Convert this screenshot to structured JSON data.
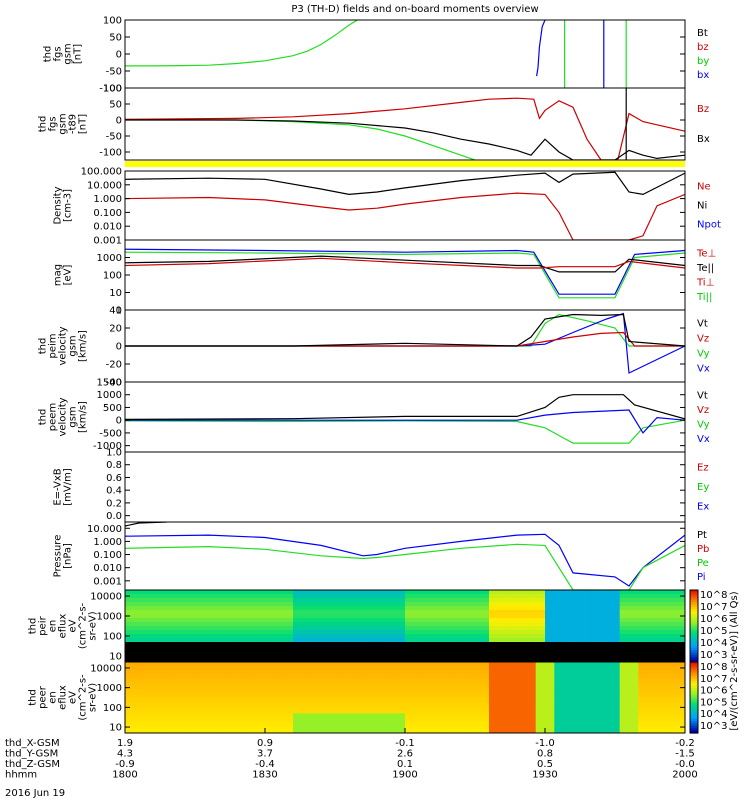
{
  "title": "P3 (TH-D) fields and on-board moments overview",
  "date_label": "2016 Jun 19",
  "colors": {
    "black": "#000000",
    "red": "#cc0000",
    "green": "#00cc00",
    "blue": "#0000ff",
    "brightgreen": "#22dd22",
    "yellow": "#ffff00"
  },
  "chart_data": [
    {
      "type": "line",
      "name": "fgs_gsm",
      "ylabel": [
        "thd",
        "fgs",
        "gsm",
        "[nT]"
      ],
      "ylim": [
        -100,
        100
      ],
      "yticks": [
        "100",
        "50",
        "0",
        "-50",
        "-100"
      ],
      "legend": [
        {
          "label": "Bt",
          "color": "#000000"
        },
        {
          "label": "bz",
          "color": "#cc0000"
        },
        {
          "label": "by",
          "color": "#00cc00"
        },
        {
          "label": "bx",
          "color": "#0000ff"
        }
      ],
      "series": [
        {
          "color": "#22dd22",
          "x": [
            18.0,
            18.1,
            18.2,
            18.3,
            18.4,
            18.5,
            18.6,
            18.65,
            18.7,
            18.75,
            18.8,
            18.83
          ],
          "y": [
            -35,
            -35,
            -34,
            -33,
            -28,
            -20,
            -5,
            8,
            28,
            55,
            85,
            100
          ]
        },
        {
          "color": "#0000ff",
          "x": [
            19.47,
            19.475,
            19.48,
            19.49,
            19.5
          ],
          "y": [
            -65,
            -40,
            20,
            80,
            100
          ]
        },
        {
          "color": "#0000ff",
          "x": [
            19.71,
            19.71
          ],
          "y": [
            100,
            -100
          ]
        },
        {
          "color": "#22dd22",
          "x": [
            19.57,
            19.57
          ],
          "y": [
            100,
            -100
          ]
        },
        {
          "color": "#22dd22",
          "x": [
            19.79,
            19.79
          ],
          "y": [
            100,
            -100
          ]
        }
      ]
    },
    {
      "type": "line",
      "name": "fgs_gsm_t89",
      "ylabel": [
        "thd",
        "fgs",
        "gsm",
        "-t89",
        "[nT]"
      ],
      "ylim": [
        -125,
        100
      ],
      "yticks": [
        "100",
        "50",
        "0",
        "-50",
        "-100"
      ],
      "legend": [
        {
          "label": "Bz",
          "color": "#cc0000"
        },
        {
          "label": "Bx",
          "color": "#000000"
        }
      ],
      "series": [
        {
          "color": "#22dd22",
          "x": [
            18.0,
            18.4,
            18.6,
            18.8,
            18.9,
            19.0,
            19.1,
            19.2,
            19.25
          ],
          "y": [
            2,
            0,
            -5,
            -15,
            -28,
            -50,
            -80,
            -110,
            -125
          ]
        },
        {
          "color": "#cc0000",
          "x": [
            18.0,
            18.4,
            18.6,
            18.8,
            19.0,
            19.2,
            19.3,
            19.4,
            19.46,
            19.48,
            19.5,
            19.55,
            19.6,
            19.65,
            19.7,
            19.76,
            19.8,
            19.85,
            19.9,
            20.0
          ],
          "y": [
            2,
            5,
            10,
            20,
            35,
            55,
            65,
            68,
            65,
            5,
            30,
            60,
            40,
            -60,
            -125,
            -125,
            20,
            -5,
            -15,
            -35
          ]
        },
        {
          "color": "#000000",
          "x": [
            18.0,
            18.4,
            18.6,
            18.8,
            19.0,
            19.1,
            19.2,
            19.3,
            19.4,
            19.45,
            19.5,
            19.55,
            19.6,
            19.75,
            19.8,
            19.85,
            19.9,
            20.0
          ],
          "y": [
            0,
            0,
            -3,
            -10,
            -25,
            -40,
            -60,
            -75,
            -95,
            -110,
            -60,
            -100,
            -125,
            -125,
            -95,
            -110,
            -120,
            -110
          ]
        },
        {
          "color": "#000000",
          "x": [
            19.79,
            19.79
          ],
          "y": [
            100,
            -125
          ]
        }
      ]
    },
    {
      "type": "line",
      "name": "density",
      "ylabel": [
        "Density",
        "[cm-3]"
      ],
      "scale": "log",
      "ylim": [
        0.001,
        100
      ],
      "yticks": [
        "100.000",
        "10.000",
        "1.000",
        "0.100",
        "0.010",
        "0.001"
      ],
      "legend": [
        {
          "label": "Ne",
          "color": "#cc0000"
        },
        {
          "label": "Ni",
          "color": "#000000"
        },
        {
          "label": "Npot",
          "color": "#0000ff"
        }
      ],
      "series": [
        {
          "color": "#000000",
          "x": [
            18.0,
            18.3,
            18.5,
            18.7,
            18.8,
            18.9,
            19.0,
            19.2,
            19.4,
            19.5,
            19.55,
            19.6,
            19.75,
            19.8,
            19.85,
            20.0
          ],
          "y": [
            25,
            30,
            25,
            5,
            2,
            3,
            6,
            20,
            50,
            70,
            15,
            60,
            80,
            3,
            2,
            70
          ]
        },
        {
          "color": "#cc0000",
          "x": [
            18.0,
            18.3,
            18.5,
            18.7,
            18.8,
            18.9,
            19.0,
            19.2,
            19.4,
            19.5,
            19.55,
            19.6,
            19.8,
            19.85,
            19.9,
            20.0
          ],
          "y": [
            1,
            1.2,
            0.8,
            0.25,
            0.15,
            0.2,
            0.4,
            1.2,
            2.5,
            2,
            0.1,
            0.001,
            0.001,
            0.002,
            0.3,
            2
          ]
        }
      ]
    },
    {
      "type": "line",
      "name": "mom_temperature",
      "ylabel": [
        "mag",
        "[eV]"
      ],
      "scale": "log",
      "ylim": [
        1,
        10000
      ],
      "yticks": [
        "1000",
        "100",
        "10",
        "1"
      ],
      "legend": [
        {
          "label": "Te⊥",
          "color": "#cc0000"
        },
        {
          "label": "Te||",
          "color": "#000000"
        },
        {
          "label": "Ti⊥",
          "color": "#cc0000"
        },
        {
          "label": "Ti||",
          "color": "#00cc00"
        }
      ],
      "series": [
        {
          "color": "#0000ff",
          "x": [
            18.0,
            18.5,
            19.0,
            19.4,
            19.46,
            19.55,
            19.75,
            19.82,
            20.0
          ],
          "y": [
            3000,
            2500,
            2000,
            2500,
            2000,
            8,
            8,
            1500,
            2500
          ]
        },
        {
          "color": "#22dd22",
          "x": [
            18.0,
            18.5,
            19.0,
            19.4,
            19.46,
            19.55,
            19.75,
            19.82,
            20.0
          ],
          "y": [
            2000,
            1800,
            1500,
            1800,
            1500,
            5,
            5,
            1000,
            1800
          ]
        },
        {
          "color": "#000000",
          "x": [
            18.0,
            18.3,
            18.7,
            19.0,
            19.4,
            19.48,
            19.55,
            19.75,
            19.8,
            20.0
          ],
          "y": [
            500,
            600,
            1200,
            700,
            350,
            350,
            150,
            150,
            800,
            350
          ]
        },
        {
          "color": "#cc0000",
          "x": [
            18.0,
            18.3,
            18.7,
            19.0,
            19.4,
            19.48,
            19.55,
            19.75,
            19.8,
            20.0
          ],
          "y": [
            350,
            450,
            900,
            500,
            250,
            250,
            300,
            300,
            600,
            250
          ]
        }
      ]
    },
    {
      "type": "line",
      "name": "peim_velocity",
      "ylabel": [
        "thd",
        "peim",
        "velocity",
        "gsm",
        "[km/s]"
      ],
      "ylim": [
        -40,
        40
      ],
      "yticks": [
        "40",
        "20",
        "0",
        "-20",
        "-40"
      ],
      "legend": [
        {
          "label": "Vt",
          "color": "#000000"
        },
        {
          "label": "Vz",
          "color": "#cc0000"
        },
        {
          "label": "Vy",
          "color": "#00cc00"
        },
        {
          "label": "Vx",
          "color": "#0000ff"
        }
      ],
      "series": [
        {
          "color": "#22dd22",
          "x": [
            18.0,
            18.5,
            19.0,
            19.45,
            19.5,
            19.55,
            19.65,
            19.75,
            19.8,
            20.0
          ],
          "y": [
            0,
            0,
            0,
            0,
            25,
            35,
            28,
            20,
            0,
            0
          ]
        },
        {
          "color": "#0000ff",
          "x": [
            18.0,
            19.4,
            19.5,
            19.6,
            19.72,
            19.78,
            19.8,
            20.0
          ],
          "y": [
            0,
            0,
            2,
            15,
            30,
            36,
            -30,
            0
          ]
        },
        {
          "color": "#cc0000",
          "x": [
            18.0,
            19.4,
            19.5,
            19.6,
            19.7,
            19.78,
            19.82,
            20.0
          ],
          "y": [
            0,
            0,
            5,
            10,
            14,
            15,
            0,
            0
          ]
        },
        {
          "color": "#000000",
          "x": [
            18.0,
            18.6,
            19.0,
            19.4,
            19.45,
            19.5,
            19.6,
            19.7,
            19.78,
            19.8,
            20.0
          ],
          "y": [
            0,
            0,
            3,
            0,
            10,
            30,
            35,
            34,
            35,
            5,
            0
          ]
        }
      ]
    },
    {
      "type": "line",
      "name": "peem_velocity",
      "ylabel": [
        "thd",
        "peem",
        "velocity",
        "gsm",
        "[km/s]"
      ],
      "ylim": [
        -1250,
        1500
      ],
      "yticks": [
        "1500",
        "1000",
        "500",
        "0",
        "-500",
        "-1000"
      ],
      "legend": [
        {
          "label": "Vt",
          "color": "#000000"
        },
        {
          "label": "Vz",
          "color": "#cc0000"
        },
        {
          "label": "Vy",
          "color": "#00cc00"
        },
        {
          "label": "Vx",
          "color": "#0000ff"
        }
      ],
      "series": [
        {
          "color": "#22dd22",
          "x": [
            18.0,
            18.5,
            19.0,
            19.4,
            19.5,
            19.55,
            19.6,
            19.8,
            19.85,
            20.0
          ],
          "y": [
            -30,
            -50,
            -30,
            -50,
            -300,
            -600,
            -900,
            -900,
            -300,
            0
          ]
        },
        {
          "color": "#0000ff",
          "x": [
            18.0,
            19.4,
            19.5,
            19.6,
            19.8,
            19.85,
            19.9,
            20.0
          ],
          "y": [
            0,
            0,
            200,
            300,
            400,
            -500,
            100,
            0
          ]
        },
        {
          "color": "#000000",
          "x": [
            18.0,
            18.6,
            19.0,
            19.4,
            19.5,
            19.55,
            19.6,
            19.78,
            19.82,
            20.0
          ],
          "y": [
            30,
            60,
            150,
            150,
            500,
            900,
            1000,
            1000,
            600,
            50
          ]
        }
      ]
    },
    {
      "type": "line",
      "name": "e_field",
      "ylabel": [
        "E=-VxB",
        "[mV/m]"
      ],
      "ylim": [
        -0.1,
        1.0
      ],
      "yticks": [
        "1.0",
        "0.8",
        "0.6",
        "0.4",
        "0.2",
        "0.0"
      ],
      "legend": [
        {
          "label": "Ez",
          "color": "#cc0000"
        },
        {
          "label": "Ey",
          "color": "#00cc00"
        },
        {
          "label": "Ex",
          "color": "#0000ff"
        }
      ],
      "series": []
    },
    {
      "type": "line",
      "name": "pressure",
      "ylabel": [
        "Pressure",
        "[nPa]"
      ],
      "scale": "log",
      "ylim": [
        0.0002,
        30
      ],
      "yticks": [
        "10.000",
        "1.000",
        "0.100",
        "0.010",
        "0.001"
      ],
      "legend": [
        {
          "label": "Pt",
          "color": "#000000"
        },
        {
          "label": "Pb",
          "color": "#cc0000"
        },
        {
          "label": "Pe",
          "color": "#00cc00"
        },
        {
          "label": "Pi",
          "color": "#0000ff"
        }
      ],
      "series": [
        {
          "color": "#000000",
          "x": [
            18.0,
            18.05,
            18.15
          ],
          "y": [
            15,
            25,
            30
          ]
        },
        {
          "color": "#0000ff",
          "x": [
            18.0,
            18.3,
            18.5,
            18.7,
            18.85,
            18.9,
            19.0,
            19.2,
            19.4,
            19.5,
            19.55,
            19.6,
            19.75,
            19.8,
            19.85,
            20.0
          ],
          "y": [
            2.5,
            3,
            2,
            0.5,
            0.08,
            0.1,
            0.3,
            1,
            3,
            3.5,
            0.5,
            0.004,
            0.002,
            0.0004,
            0.01,
            3
          ]
        },
        {
          "color": "#22dd22",
          "x": [
            18.0,
            18.3,
            18.5,
            18.7,
            18.85,
            18.9,
            19.0,
            19.2,
            19.4,
            19.5,
            19.55,
            19.6,
            19.8,
            19.85,
            20.0
          ],
          "y": [
            0.3,
            0.4,
            0.25,
            0.08,
            0.05,
            0.06,
            0.1,
            0.3,
            0.6,
            0.5,
            0.01,
            0.0002,
            0.0002,
            0.01,
            0.5
          ]
        }
      ]
    },
    {
      "type": "heatmap",
      "name": "peir_en_eflux",
      "ylabel": [
        "thd",
        "peir",
        "en",
        "eflux",
        "eV",
        "(cm^2-s-",
        "sr-eV)"
      ],
      "scale": "log",
      "ylim": [
        5,
        20000
      ],
      "yticks": [
        "10000",
        "1000",
        "100",
        "10"
      ],
      "colorbar": {
        "label": "[eV/(cm^2-s-sr-eV)]",
        "ticks": [
          "10^8",
          "10^7",
          "10^6",
          "10^5",
          "10^4",
          "10^3"
        ]
      }
    },
    {
      "type": "heatmap",
      "name": "peer_en_eflux",
      "ylabel": [
        "thd",
        "peer",
        "en",
        "eflux",
        "eV",
        "(cm^2-s-",
        "sr-eV)"
      ],
      "scale": "log",
      "ylim": [
        5,
        20000
      ],
      "yticks": [
        "10000",
        "1000",
        "100",
        "10"
      ],
      "colorbar": {
        "label": "[eV/(cm^2-s-sr-eV)] (All Qs)",
        "ticks": [
          "10^8",
          "10^7",
          "10^6",
          "10^5",
          "10^4",
          "10^3"
        ]
      }
    }
  ],
  "xaxis": {
    "rows": [
      {
        "label": "thd_X-GSM",
        "values": [
          "1.9",
          "0.9",
          "-0.1",
          "-1.0",
          "-0.2"
        ]
      },
      {
        "label": "thd_Y-GSM",
        "values": [
          "4.3",
          "3.7",
          "2.6",
          "0.8",
          "-1.5"
        ]
      },
      {
        "label": "thd_Z-GSM",
        "values": [
          "-0.9",
          "-0.4",
          "0.1",
          "0.5",
          "-0.0"
        ]
      },
      {
        "label": "hhmm",
        "values": [
          "1800",
          "1830",
          "1900",
          "1930",
          "2000"
        ]
      }
    ]
  }
}
